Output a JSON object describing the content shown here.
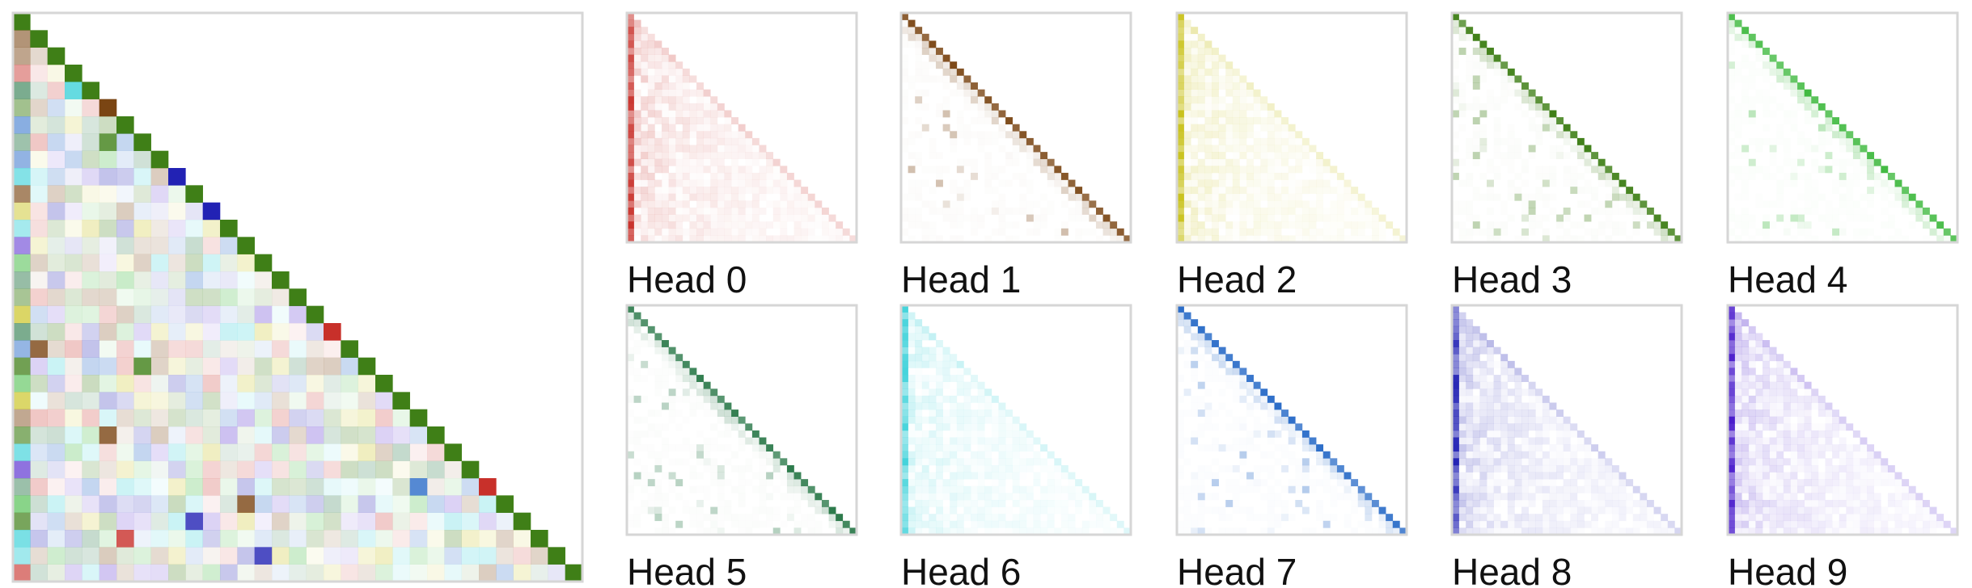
{
  "heads": [
    {
      "name": "Head 0",
      "color": "#c8302a"
    },
    {
      "name": "Head 1",
      "color": "#7a4513"
    },
    {
      "name": "Head 2",
      "color": "#c9c21c"
    },
    {
      "name": "Head 3",
      "color": "#3f7f17"
    },
    {
      "name": "Head 4",
      "color": "#3cb83c"
    },
    {
      "name": "Head 5",
      "color": "#2c7a4b"
    },
    {
      "name": "Head 6",
      "color": "#3fd2da"
    },
    {
      "name": "Head 7",
      "color": "#2a6cc8"
    },
    {
      "name": "Head 8",
      "color": "#2222b4"
    },
    {
      "name": "Head 9",
      "color": "#4a1ccc"
    }
  ]
}
